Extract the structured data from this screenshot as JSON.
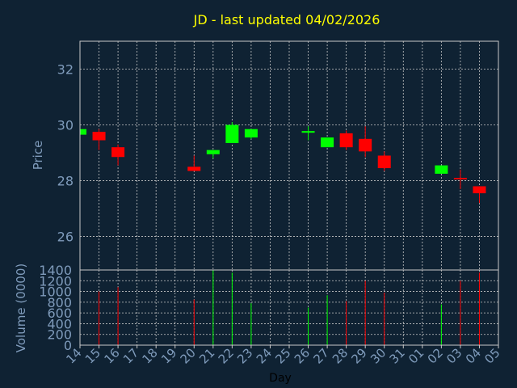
{
  "chart_data": {
    "type": "candlestick",
    "title": "JD - last updated 04/02/2026",
    "xlabel": "Day",
    "price_panel": {
      "ylabel": "Price",
      "ylim": [
        24.8,
        33.0
      ],
      "yticks": [
        "26",
        "28",
        "30",
        "32"
      ],
      "grid": true
    },
    "volume_panel": {
      "ylabel": "Volume (0000)",
      "ylim": [
        0,
        1400
      ],
      "yticks": [
        "0",
        "200",
        "400",
        "600",
        "800",
        "1000",
        "1200",
        "1400"
      ],
      "grid": true
    },
    "x_ticks": [
      "14",
      "15",
      "16",
      "17",
      "18",
      "19",
      "20",
      "21",
      "22",
      "23",
      "24",
      "25",
      "26",
      "27",
      "28",
      "29",
      "30",
      "31",
      "01",
      "02",
      "03",
      "04",
      "05"
    ],
    "candles": [
      {
        "day": "14",
        "open": 29.65,
        "close": 29.85,
        "high": 29.85,
        "low": 29.65,
        "volume": 0
      },
      {
        "day": "15",
        "open": 29.75,
        "close": 29.45,
        "high": 29.85,
        "low": 29.1,
        "volume": 1000
      },
      {
        "day": "16",
        "open": 29.2,
        "close": 28.85,
        "high": 29.3,
        "low": 28.55,
        "volume": 1080
      },
      {
        "day": "20",
        "open": 28.5,
        "close": 28.35,
        "high": 28.9,
        "low": 28.35,
        "volume": 850
      },
      {
        "day": "21",
        "open": 28.95,
        "close": 29.1,
        "high": 29.1,
        "low": 28.8,
        "volume": 1400
      },
      {
        "day": "22",
        "open": 29.35,
        "close": 30.0,
        "high": 30.1,
        "low": 29.35,
        "volume": 1350
      },
      {
        "day": "23",
        "open": 29.55,
        "close": 29.85,
        "high": 29.85,
        "low": 29.5,
        "volume": 780
      },
      {
        "day": "26",
        "open": 29.72,
        "close": 29.78,
        "high": 29.95,
        "low": 29.45,
        "volume": 700
      },
      {
        "day": "27",
        "open": 29.2,
        "close": 29.55,
        "high": 29.55,
        "low": 29.2,
        "volume": 930
      },
      {
        "day": "28",
        "open": 29.7,
        "close": 29.2,
        "high": 29.8,
        "low": 29.1,
        "volume": 820
      },
      {
        "day": "29",
        "open": 29.5,
        "close": 29.05,
        "high": 29.95,
        "low": 28.85,
        "volume": 1200
      },
      {
        "day": "30",
        "open": 28.9,
        "close": 28.45,
        "high": 29.05,
        "low": 28.35,
        "volume": 980
      },
      {
        "day": "02",
        "open": 28.25,
        "close": 28.55,
        "high": 28.55,
        "low": 28.25,
        "volume": 760
      },
      {
        "day": "03",
        "open": 28.1,
        "close": 28.05,
        "high": 28.4,
        "low": 27.7,
        "volume": 1200
      },
      {
        "day": "04",
        "open": 27.8,
        "close": 27.55,
        "high": 27.8,
        "low": 27.2,
        "volume": 1350
      }
    ],
    "colors": {
      "background": "#0f2233",
      "up": "#00ff00",
      "down": "#ff0000",
      "title": "#ffff00",
      "axis_text": "#7f9bbb",
      "grid": "#c8c8c8"
    }
  }
}
